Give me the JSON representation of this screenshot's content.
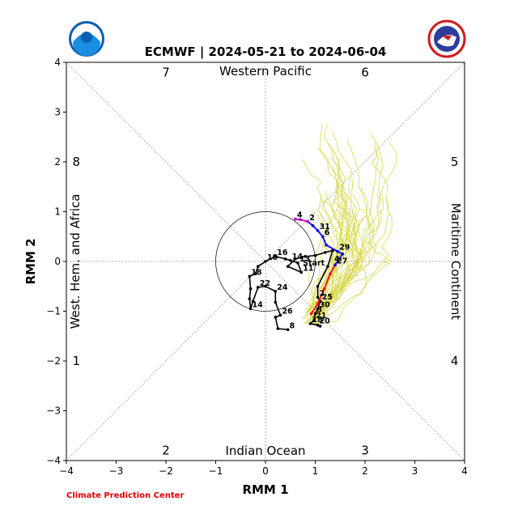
{
  "header": {
    "title": "ECMWF | 2024-05-21 to 2024-06-04",
    "left_logo": "noaa-logo",
    "right_logo": "national-weather-service-logo"
  },
  "footer": {
    "credit": "Climate Prediction Center"
  },
  "chart_data": {
    "type": "line",
    "title": "ECMWF | 2024-05-21 to 2024-06-04",
    "xlabel": "RMM 1",
    "ylabel": "RMM 2",
    "xlim": [
      -4,
      4
    ],
    "ylim": [
      -4,
      4
    ],
    "xticks": [
      "−4",
      "−3",
      "−2",
      "−1",
      "0",
      "1",
      "2",
      "3",
      "4"
    ],
    "yticks": [
      "−4",
      "−3",
      "−2",
      "−1",
      "0",
      "1",
      "2",
      "3",
      "4"
    ],
    "regions": {
      "top": "Western Pacific",
      "bottom": "Indian Ocean",
      "left": "West. Hem. and Africa",
      "right": "Maritime Continent"
    },
    "phases": [
      {
        "label": "1",
        "x": -3.8,
        "y": -2.0
      },
      {
        "label": "2",
        "x": -2.0,
        "y": -3.8
      },
      {
        "label": "3",
        "x": 2.0,
        "y": -3.8
      },
      {
        "label": "4",
        "x": 3.8,
        "y": -2.0
      },
      {
        "label": "5",
        "x": 3.8,
        "y": 2.0
      },
      {
        "label": "6",
        "x": 2.0,
        "y": 3.8
      },
      {
        "label": "7",
        "x": -2.0,
        "y": 3.8
      },
      {
        "label": "8",
        "x": -3.8,
        "y": 2.0
      }
    ],
    "unit_circle_radius": 1,
    "colors": {
      "observed": "#000000",
      "forecast_week1": "#ff0000",
      "forecast_week2": "#0000ff",
      "forecast_end": "#c000c0",
      "ensemble": "#d4d43a",
      "credit": "#e00000"
    },
    "observed": {
      "points": [
        {
          "x": 0.45,
          "y": -1.37,
          "label": "8"
        },
        {
          "x": 0.25,
          "y": -1.35
        },
        {
          "x": 0.2,
          "y": -1.12
        },
        {
          "x": 0.3,
          "y": -1.08,
          "label": "26"
        },
        {
          "x": 0.2,
          "y": -0.82
        },
        {
          "x": 0.2,
          "y": -0.6,
          "label": "24"
        },
        {
          "x": 0.0,
          "y": -0.5
        },
        {
          "x": -0.15,
          "y": -0.52,
          "label": "22"
        },
        {
          "x": -0.25,
          "y": -0.8
        },
        {
          "x": -0.3,
          "y": -0.95,
          "label": "14"
        },
        {
          "x": -0.32,
          "y": -0.75
        },
        {
          "x": -0.3,
          "y": -0.55
        },
        {
          "x": -0.32,
          "y": -0.3,
          "label": "18"
        },
        {
          "x": -0.2,
          "y": -0.25
        },
        {
          "x": -0.15,
          "y": -0.1
        },
        {
          "x": 0.0,
          "y": 0.0,
          "label": "10"
        },
        {
          "x": 0.2,
          "y": 0.1,
          "label": "16"
        },
        {
          "x": 0.4,
          "y": 0.05
        },
        {
          "x": 0.5,
          "y": 0.02,
          "label": "14"
        },
        {
          "x": 0.65,
          "y": -0.03,
          "label": "13"
        },
        {
          "x": 0.72,
          "y": -0.22,
          "label": "11"
        },
        {
          "x": 0.45,
          "y": -0.1
        },
        {
          "x": 0.6,
          "y": 0.05
        },
        {
          "x": 0.8,
          "y": 0.1
        },
        {
          "x": 1.0,
          "y": 0.12
        },
        {
          "x": 1.2,
          "y": 0.18
        },
        {
          "x": 1.35,
          "y": 0.22
        },
        {
          "x": 1.25,
          "y": -0.1
        },
        {
          "x": 1.05,
          "y": -0.5
        },
        {
          "x": 1.05,
          "y": -0.72,
          "label": "2"
        },
        {
          "x": 1.1,
          "y": -0.8,
          "label": "25"
        },
        {
          "x": 1.05,
          "y": -0.95,
          "label": "30"
        },
        {
          "x": 1.0,
          "y": -1.05,
          "label": "3"
        },
        {
          "x": 0.98,
          "y": -1.17,
          "label": "21"
        },
        {
          "x": 0.9,
          "y": -1.25,
          "label": "18"
        },
        {
          "x": 1.05,
          "y": -1.28,
          "label": "20"
        },
        {
          "x": 1.1,
          "y": -1.3
        }
      ]
    },
    "forecast": {
      "red": [
        {
          "x": 0.92,
          "y": -1.05
        },
        {
          "x": 1.05,
          "y": -0.85
        },
        {
          "x": 1.18,
          "y": -0.55
        },
        {
          "x": 1.3,
          "y": -0.25
        },
        {
          "x": 1.4,
          "y": -0.07,
          "label": "27"
        }
      ],
      "blue": [
        {
          "x": 1.4,
          "y": -0.07
        },
        {
          "x": 1.55,
          "y": 0.15
        },
        {
          "x": 1.45,
          "y": 0.2,
          "label": "29"
        },
        {
          "x": 1.22,
          "y": 0.33
        },
        {
          "x": 1.15,
          "y": 0.5,
          "label": "6"
        },
        {
          "x": 1.05,
          "y": 0.62,
          "label": "31"
        },
        {
          "x": 0.95,
          "y": 0.72
        },
        {
          "x": 0.85,
          "y": 0.8,
          "label": "2"
        }
      ],
      "purple": [
        {
          "x": 0.85,
          "y": 0.8
        },
        {
          "x": 0.7,
          "y": 0.84
        },
        {
          "x": 0.6,
          "y": 0.85,
          "label": "4"
        }
      ],
      "extra_labels": [
        {
          "x": 1.35,
          "y": -0.03,
          "label": "4"
        }
      ]
    },
    "start_label": {
      "x": 0.75,
      "y": -0.03,
      "text": "Start"
    },
    "ensemble_count": 40,
    "grid": false,
    "legend": "none"
  }
}
